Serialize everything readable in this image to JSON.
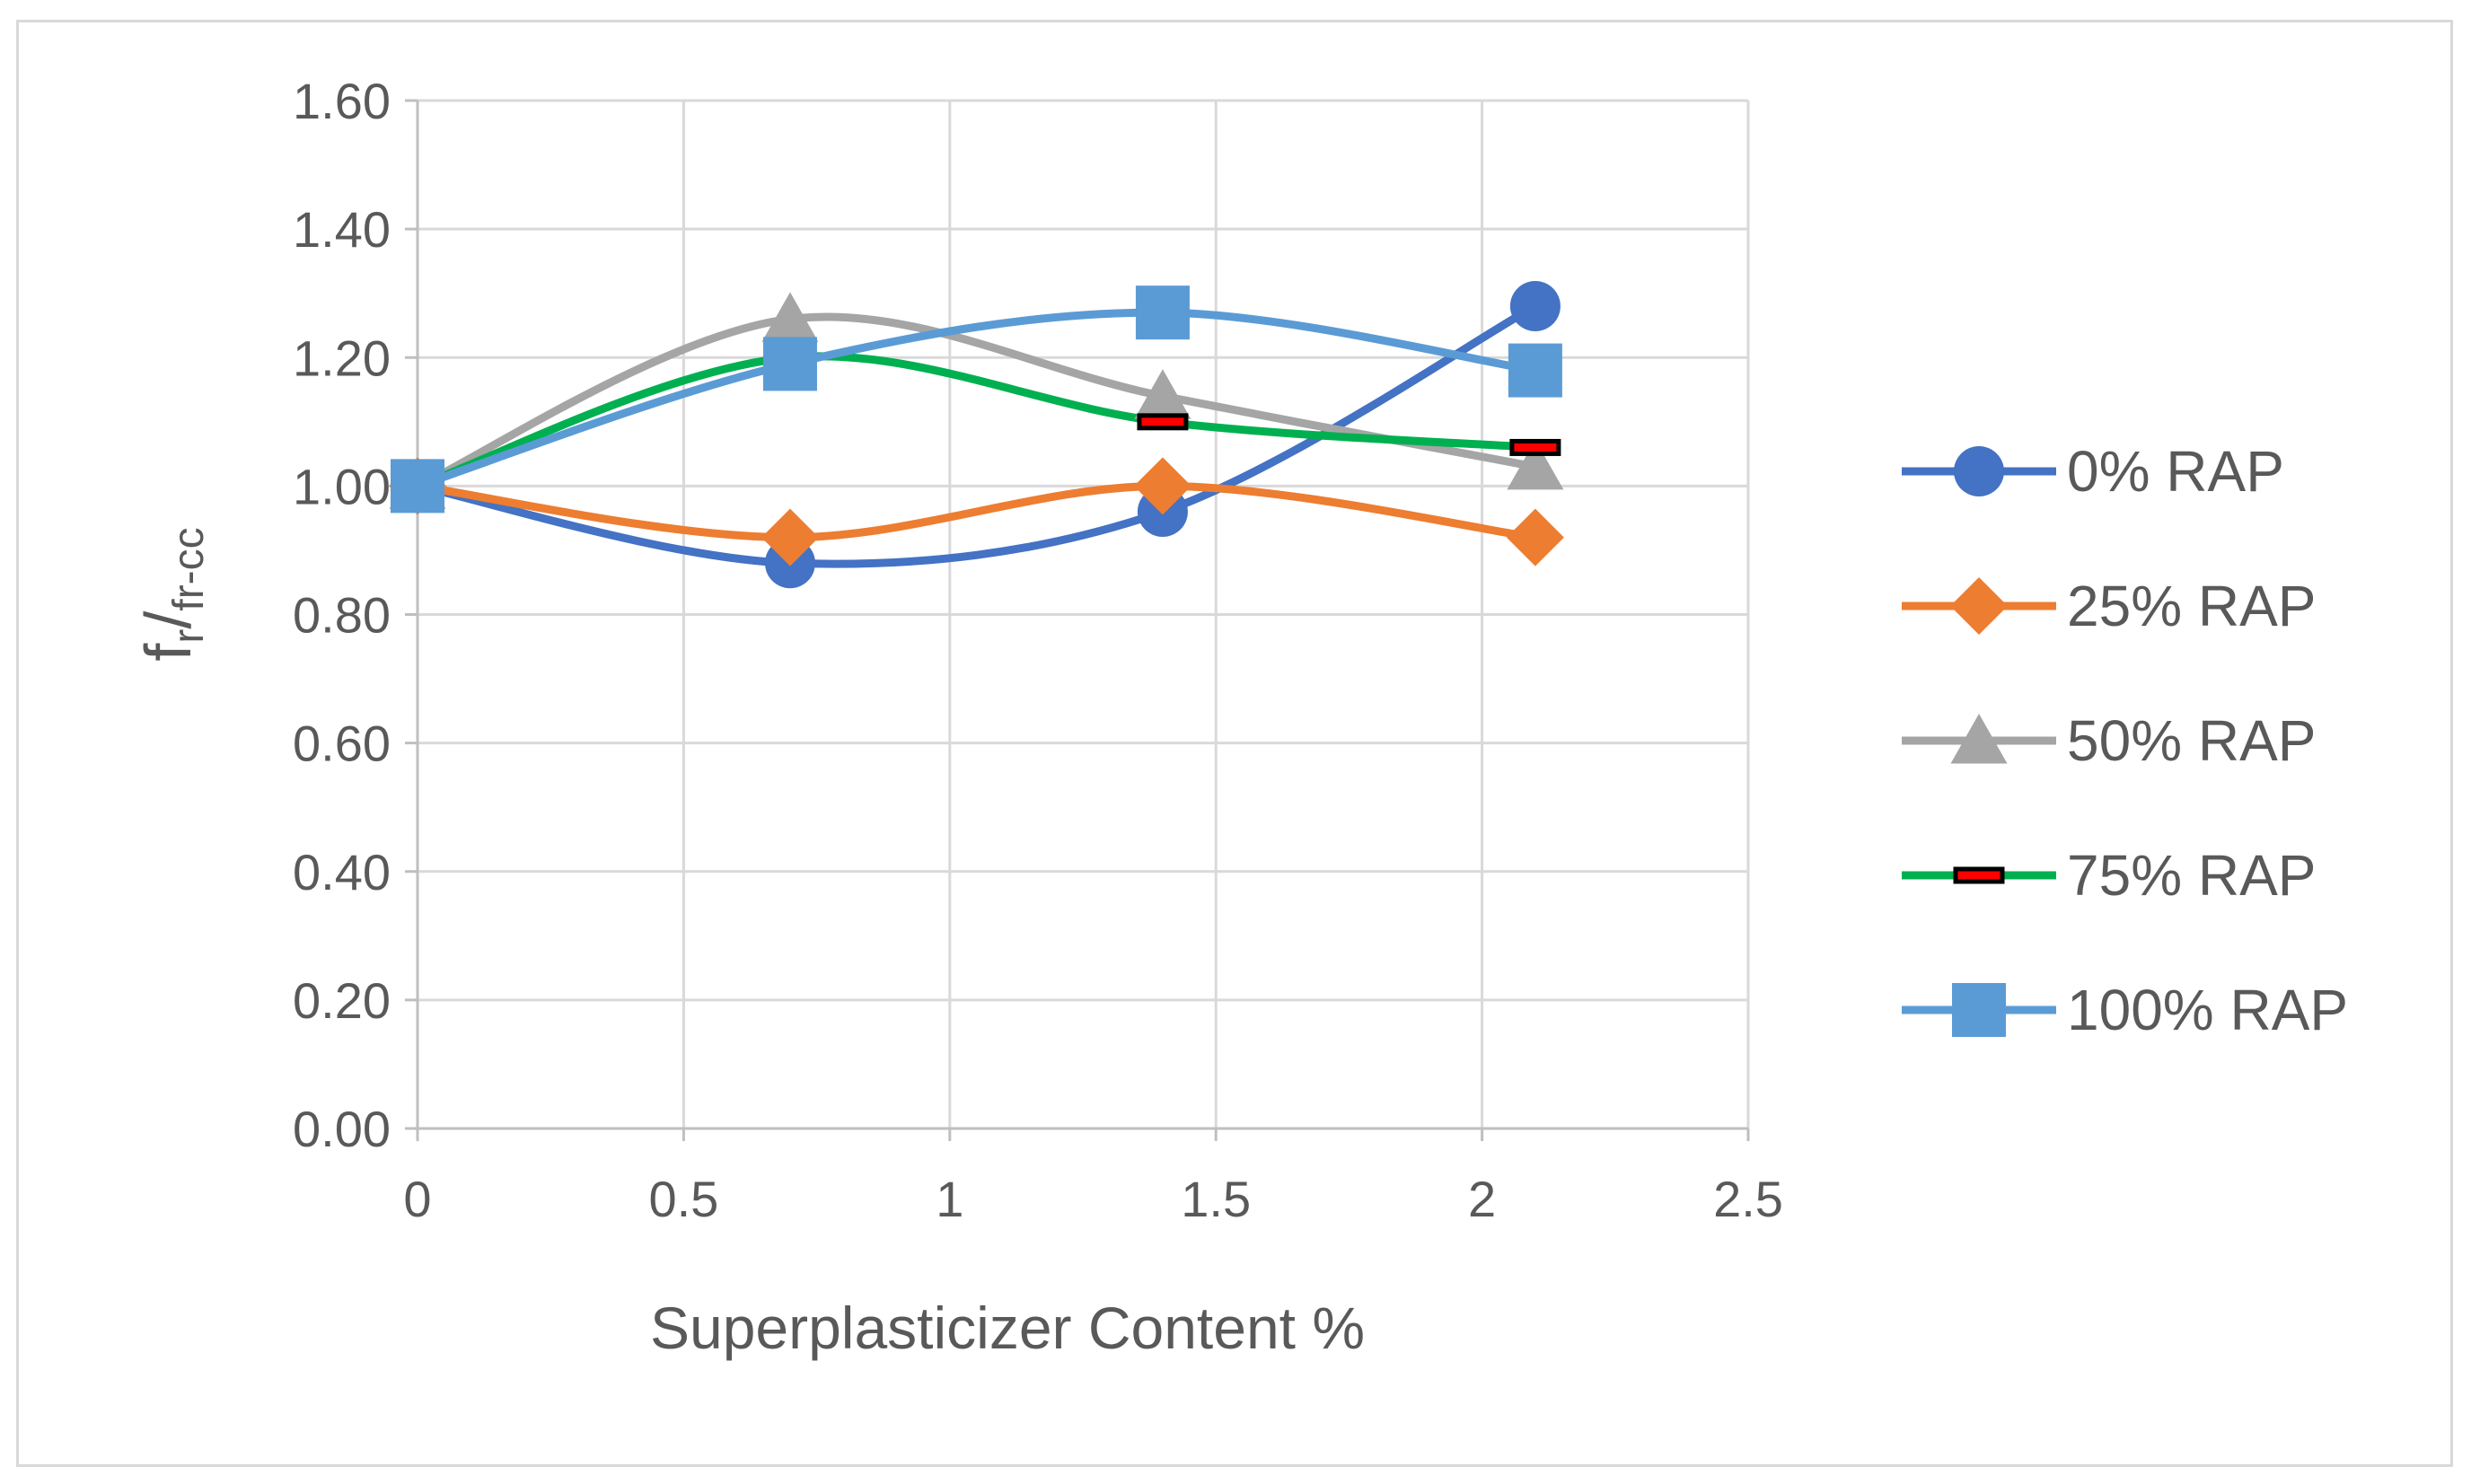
{
  "chart_data": {
    "type": "line",
    "title": "",
    "xlabel": "Superplasticizer Content %",
    "ylabel": {
      "main": "f",
      "sub_r": "r",
      "slash": "/",
      "sub_den": "fr-cc"
    },
    "xlim": [
      0,
      2.5
    ],
    "ylim": [
      0,
      1.6
    ],
    "x_ticks": [
      "0",
      "0.5",
      "1",
      "1.5",
      "2",
      "2.5"
    ],
    "y_ticks": [
      "0.00",
      "0.20",
      "0.40",
      "0.60",
      "0.80",
      "1.00",
      "1.20",
      "1.40",
      "1.60"
    ],
    "grid": true,
    "smooth": true,
    "legend_position": "right",
    "x": [
      0,
      0.7,
      1.4,
      2.1
    ],
    "series": [
      {
        "name": "0% RAP",
        "values": [
          1.0,
          0.88,
          0.96,
          1.28
        ],
        "color": "#4472c4",
        "marker": "circle"
      },
      {
        "name": "25% RAP",
        "values": [
          1.0,
          0.92,
          1.0,
          0.92
        ],
        "color": "#ed7d31",
        "marker": "diamond"
      },
      {
        "name": "50% RAP",
        "values": [
          1.0,
          1.26,
          1.14,
          1.03
        ],
        "color": "#a5a5a5",
        "marker": "triangle"
      },
      {
        "name": "75% RAP",
        "values": [
          1.0,
          1.2,
          1.1,
          1.06
        ],
        "color": "#00b050",
        "marker": "dash",
        "marker_fill": "#ff0000",
        "marker_edge": "#000000"
      },
      {
        "name": "100% RAP",
        "values": [
          1.0,
          1.19,
          1.27,
          1.18
        ],
        "color": "#5b9bd5",
        "marker": "square"
      }
    ]
  }
}
